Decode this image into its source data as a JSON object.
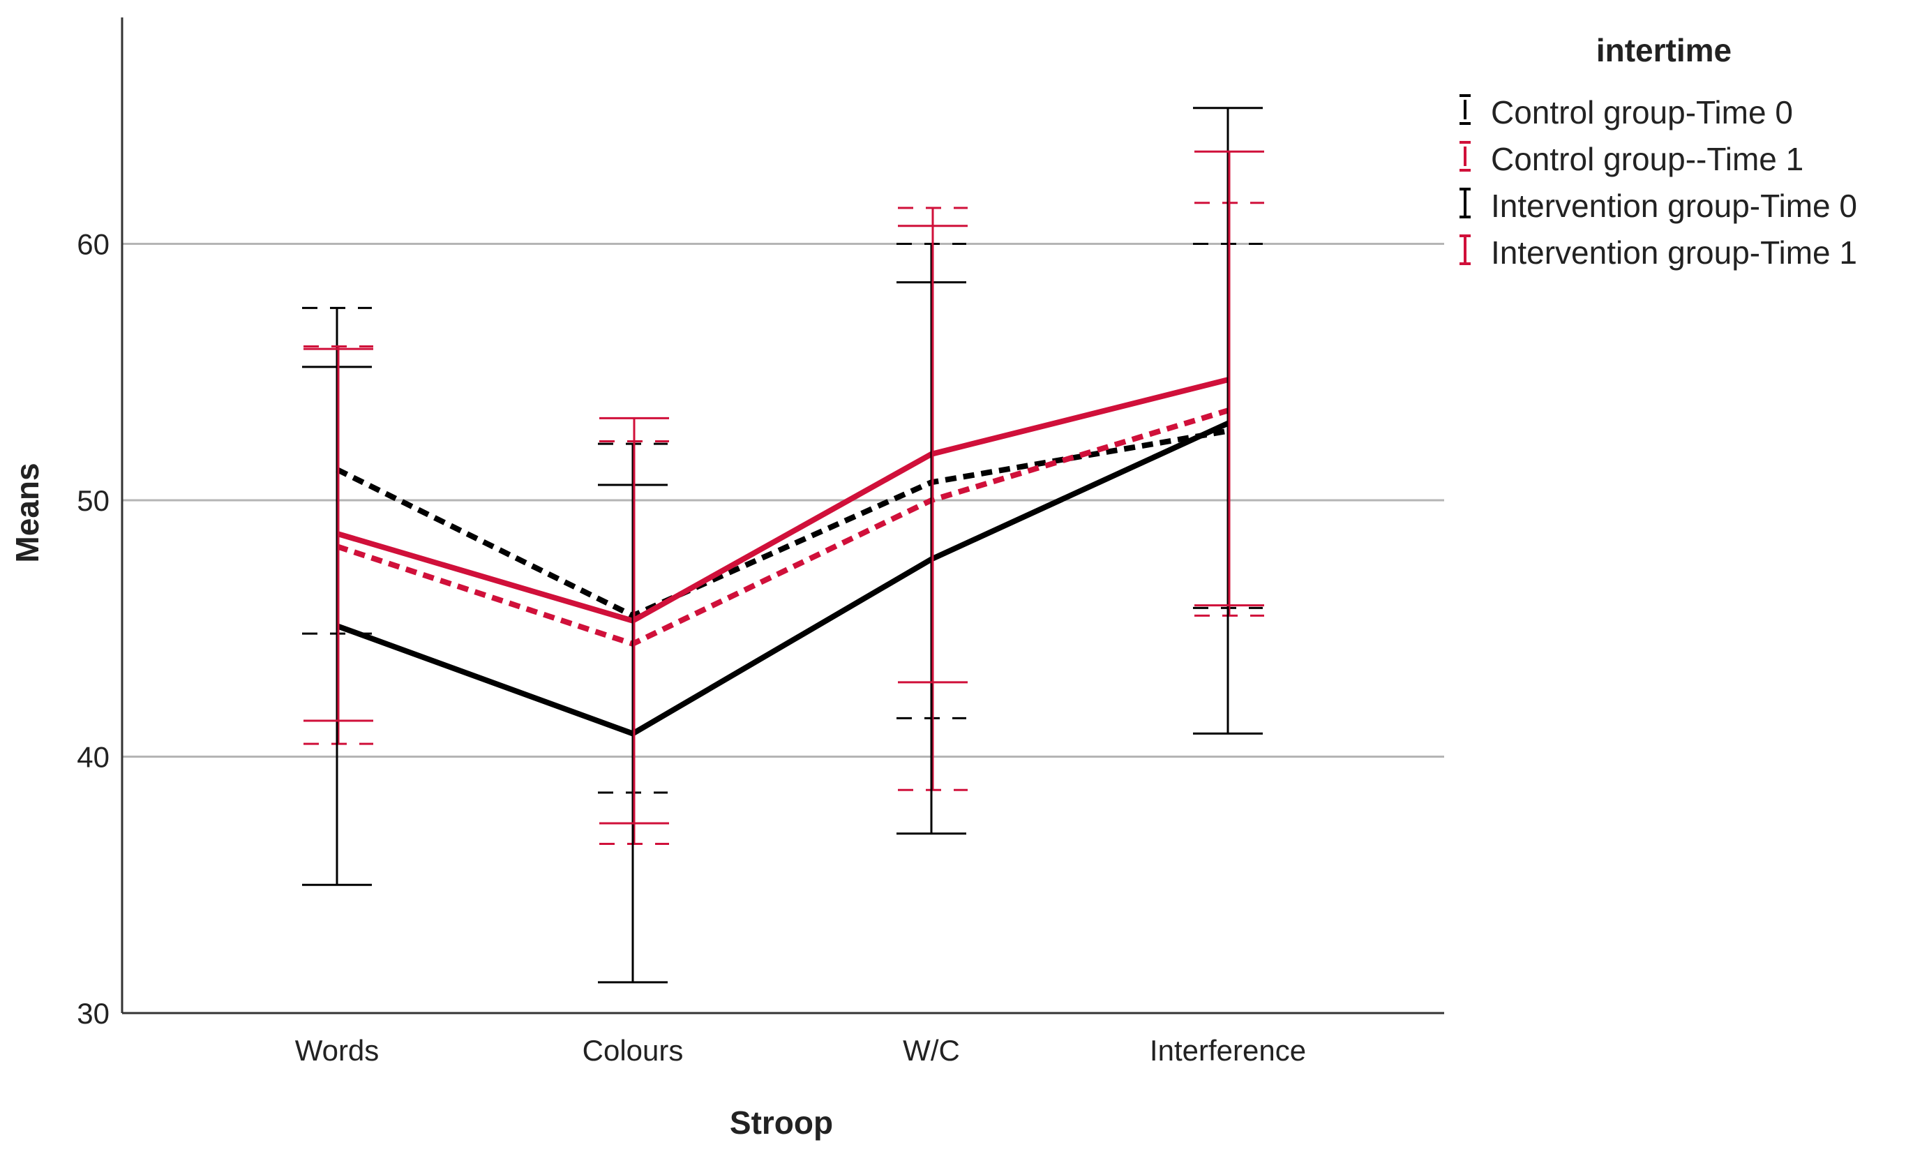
{
  "chart_data": {
    "type": "line",
    "title": "",
    "xlabel": "Stroop",
    "ylabel": "Means",
    "categories": [
      "Words",
      "Colours",
      "W/C",
      "Interference"
    ],
    "ylim": [
      30,
      69
    ],
    "yticks": [
      "30",
      "40",
      "50",
      "60"
    ],
    "grid": "horizontal",
    "legend": {
      "title": "intertime",
      "placement": "top-right"
    },
    "series": [
      {
        "name": "Control group-Time 0",
        "color": "#000000",
        "style": "dashed",
        "means": [
          51.2,
          45.5,
          50.7,
          52.7
        ],
        "lower": [
          44.8,
          38.6,
          41.5,
          45.8
        ],
        "upper": [
          57.5,
          52.2,
          60.0,
          60.0
        ]
      },
      {
        "name": "Control group--Time 1",
        "color": "#d0103a",
        "style": "dashed",
        "means": [
          48.2,
          44.4,
          50.0,
          53.5
        ],
        "lower": [
          40.5,
          36.6,
          38.7,
          45.5
        ],
        "upper": [
          56.0,
          52.3,
          61.4,
          61.6
        ]
      },
      {
        "name": "Intervention group-Time 0",
        "color": "#000000",
        "style": "solid",
        "means": [
          45.1,
          40.9,
          47.7,
          53.0
        ],
        "lower": [
          35.0,
          31.2,
          37.0,
          40.9
        ],
        "upper": [
          55.2,
          50.6,
          58.5,
          65.3
        ]
      },
      {
        "name": "Intervention group-Time 1",
        "color": "#d0103a",
        "style": "solid",
        "means": [
          48.7,
          45.3,
          51.8,
          54.7
        ],
        "lower": [
          41.4,
          37.4,
          42.9,
          45.9
        ],
        "upper": [
          55.9,
          53.2,
          60.7,
          63.6
        ]
      }
    ]
  }
}
